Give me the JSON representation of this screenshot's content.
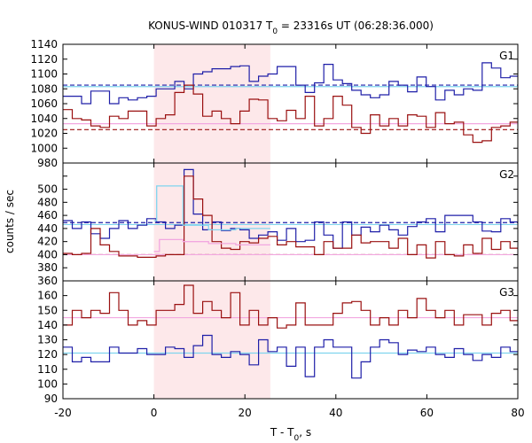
{
  "chart_data": {
    "type": "line",
    "title": "KONUS-WIND 010317 T₀ = 23316s UT (06:28:36.000)",
    "title_parts": {
      "prefix": "KONUS-WIND 010317 T",
      "subscript": "0",
      "suffix": " = 23316s UT (06:28:36.000)"
    },
    "xlabel": "T - T₀, s",
    "xlabel_parts": {
      "prefix": "T - T",
      "subscript": "0",
      "suffix": ", s"
    },
    "ylabel": "counts / sec",
    "xlim": [
      -20,
      80
    ],
    "xticks": [
      -20,
      0,
      20,
      40,
      60,
      80
    ],
    "shaded_interval": {
      "x0": 0,
      "x1": 25.6,
      "color": "#fde8ea"
    },
    "colors": {
      "blue": "#1f1fa8",
      "red": "#9a1010",
      "cyan": "#7fd4ee",
      "pink": "#f2a7e0"
    },
    "step": 2.048,
    "x_start": -20,
    "panels": [
      {
        "label": "G1",
        "ylim": [
          980,
          1140
        ],
        "yticks": [
          980,
          1000,
          1020,
          1040,
          1060,
          1080,
          1100,
          1120,
          1140
        ],
        "series": [
          {
            "color_key": "blue",
            "values": [
              1070,
              1070,
              1060,
              1077,
              1077,
              1060,
              1068,
              1065,
              1068,
              1070,
              1080,
              1080,
              1090,
              1080,
              1100,
              1103,
              1107,
              1107,
              1110,
              1111,
              1090,
              1097,
              1100,
              1110,
              1110,
              1085,
              1075,
              1088,
              1113,
              1092,
              1087,
              1078,
              1072,
              1068,
              1072,
              1090,
              1085,
              1076,
              1096,
              1083,
              1065,
              1078,
              1072,
              1080,
              1078,
              1115,
              1108,
              1095,
              1097,
              1088,
              1083,
              1080,
              1075,
              1098,
              1090,
              1082
            ]
          },
          {
            "color_key": "red",
            "values": [
              1052,
              1040,
              1038,
              1030,
              1028,
              1043,
              1040,
              1050,
              1050,
              1030,
              1040,
              1045,
              1075,
              1085,
              1073,
              1043,
              1050,
              1040,
              1033,
              1050,
              1066,
              1065,
              1040,
              1037,
              1051,
              1040,
              1070,
              1030,
              1040,
              1070,
              1058,
              1028,
              1020,
              1045,
              1030,
              1040,
              1030,
              1045,
              1043,
              1028,
              1048,
              1033,
              1035,
              1018,
              1008,
              1010,
              1028,
              1030,
              1035,
              1028,
              1030,
              1030,
              1040,
              1022,
              1045,
              1045
            ]
          }
        ],
        "segments": [
          {
            "color_key": "blue",
            "dash": true,
            "x0": -20,
            "x1": 80,
            "y0": 1085,
            "y1": 1085
          },
          {
            "color_key": "cyan",
            "dash": false,
            "x0": -20,
            "x1": 80,
            "y0": 1083,
            "y1": 1083
          },
          {
            "color_key": "red",
            "dash": true,
            "x0": -20,
            "x1": 80,
            "y0": 1025,
            "y1": 1025
          },
          {
            "color_key": "pink",
            "dash": false,
            "x0": -20,
            "x1": 80,
            "y0": 1033,
            "y1": 1033
          }
        ]
      },
      {
        "label": "G2",
        "ylim": [
          360,
          540
        ],
        "yticks": [
          360,
          380,
          400,
          420,
          440,
          460,
          480,
          500,
          520
        ],
        "series": [
          {
            "color_key": "blue",
            "values": [
              452,
              440,
              450,
              432,
              425,
              440,
              452,
              440,
              445,
              455,
              450,
              440,
              445,
              530,
              462,
              438,
              450,
              437,
              440,
              438,
              425,
              430,
              435,
              422,
              440,
              420,
              422,
              450,
              430,
              410,
              450,
              430,
              442,
              435,
              445,
              438,
              430,
              443,
              450,
              455,
              435,
              460,
              460,
              460,
              450,
              436,
              435,
              455,
              450,
              460,
              455,
              440,
              440,
              450,
              452,
              446
            ]
          },
          {
            "color_key": "red",
            "values": [
              402,
              400,
              402,
              440,
              415,
              405,
              398,
              398,
              396,
              396,
              398,
              400,
              400,
              520,
              485,
              460,
              420,
              410,
              408,
              420,
              418,
              425,
              428,
              415,
              420,
              412,
              412,
              400,
              420,
              410,
              410,
              430,
              418,
              420,
              420,
              410,
              425,
              400,
              415,
              395,
              420,
              400,
              398,
              415,
              402,
              425,
              408,
              420,
              410,
              410,
              395,
              405,
              410,
              422,
              395,
              395
            ]
          }
        ],
        "segments": [
          {
            "color_key": "blue",
            "dash": true,
            "x0": -20,
            "x1": 80,
            "y0": 449,
            "y1": 449
          },
          {
            "color_key": "red",
            "dash": true,
            "x0": -20,
            "x1": 80,
            "y0": 400,
            "y1": 400
          },
          {
            "color_key": "pink",
            "dash": false,
            "x0": -20,
            "x1": 80,
            "y0": 400,
            "y1": 400
          },
          {
            "color_key": "cyan",
            "dash": false,
            "x0": -20,
            "x1": 80,
            "y0": 446,
            "y1": 446
          }
        ],
        "bins": [
          {
            "color_key": "cyan",
            "edges": [
              0,
              0.6,
              6.4,
              12,
              18,
              25.6
            ],
            "values": [
              452,
              505,
              445,
              438,
              440
            ]
          },
          {
            "color_key": "pink",
            "edges": [
              0,
              1.2,
              6.4,
              12,
              18,
              25.6
            ],
            "values": [
              405,
              423,
              420,
              417,
              415
            ]
          }
        ]
      },
      {
        "label": "G3",
        "ylim": [
          90,
          170
        ],
        "yticks": [
          90,
          100,
          110,
          120,
          130,
          140,
          150,
          160,
          170
        ],
        "series": [
          {
            "color_key": "blue",
            "values": [
              125,
              115,
              118,
              115,
              115,
              125,
              121,
              121,
              124,
              120,
              120,
              125,
              124,
              118,
              126,
              133,
              120,
              118,
              122,
              120,
              113,
              130,
              122,
              125,
              112,
              125,
              105,
              125,
              130,
              125,
              125,
              104,
              115,
              125,
              130,
              128,
              120,
              123,
              122,
              125,
              120,
              118,
              124,
              120,
              116,
              120,
              118,
              125,
              122,
              120,
              118,
              120,
              123,
              124,
              128,
              122
            ]
          },
          {
            "color_key": "red",
            "values": [
              140,
              150,
              145,
              150,
              148,
              162,
              150,
              140,
              143,
              140,
              150,
              150,
              154,
              167,
              148,
              156,
              150,
              145,
              162,
              140,
              150,
              140,
              145,
              138,
              140,
              155,
              140,
              140,
              140,
              148,
              155,
              156,
              150,
              140,
              145,
              140,
              150,
              145,
              158,
              150,
              145,
              150,
              140,
              147,
              147,
              140,
              148,
              150,
              143,
              140,
              152,
              155,
              150,
              140,
              140,
              145
            ]
          }
        ],
        "segments": [
          {
            "color_key": "pink",
            "dash": false,
            "x0": -20,
            "x1": 80,
            "y0": 145,
            "y1": 145
          },
          {
            "color_key": "cyan",
            "dash": false,
            "x0": -20,
            "x1": 80,
            "y0": 121,
            "y1": 121
          }
        ]
      }
    ]
  }
}
